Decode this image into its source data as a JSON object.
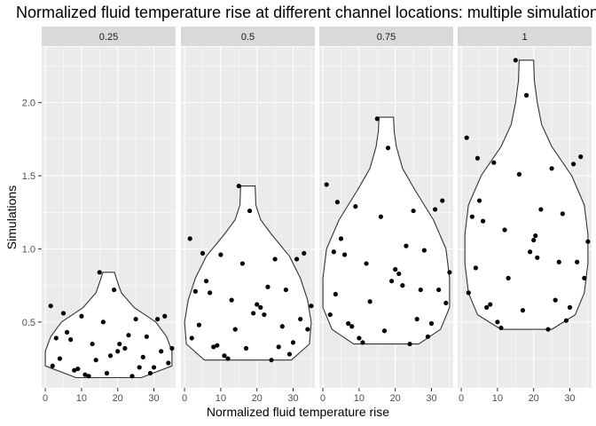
{
  "chart_data": {
    "type": "scatter",
    "title": "Normalized fluid temperature rise at different channel locations: multiple simulations",
    "xlabel": "Normalized fluid temperature rise",
    "ylabel": "Simulations",
    "xlim": [
      -1,
      36
    ],
    "ylim": [
      0.05,
      2.38
    ],
    "xticks": [
      "0",
      "10",
      "20",
      "30"
    ],
    "yticks": [
      "0.5",
      "1.0",
      "1.5",
      "2.0"
    ],
    "grid": true,
    "overlay": "violin",
    "colors": {
      "panel_bg": "#ebebeb",
      "strip_bg": "#d9d9d9",
      "grid": "#ffffff",
      "point": "#000000",
      "violin_fill": "#ffffff",
      "violin_line": "#333333"
    },
    "panels": [
      {
        "label": "0.25",
        "points": [
          [
            1.5,
            0.61
          ],
          [
            2,
            0.2
          ],
          [
            3,
            0.39
          ],
          [
            4,
            0.25
          ],
          [
            5,
            0.56
          ],
          [
            6,
            0.43
          ],
          [
            7,
            0.38
          ],
          [
            8,
            0.17
          ],
          [
            9,
            0.18
          ],
          [
            10,
            0.54
          ],
          [
            11,
            0.14
          ],
          [
            12,
            0.13
          ],
          [
            13,
            0.35
          ],
          [
            14,
            0.24
          ],
          [
            15,
            0.84
          ],
          [
            16,
            0.5
          ],
          [
            17,
            0.15
          ],
          [
            18,
            0.27
          ],
          [
            19,
            0.72
          ],
          [
            20,
            0.3
          ],
          [
            20.5,
            0.35
          ],
          [
            22,
            0.32
          ],
          [
            23,
            0.41
          ],
          [
            24,
            0.13
          ],
          [
            25,
            0.52
          ],
          [
            26,
            0.19
          ],
          [
            27,
            0.26
          ],
          [
            28,
            0.4
          ],
          [
            29,
            0.15
          ],
          [
            30,
            0.19
          ],
          [
            31,
            0.52
          ],
          [
            32,
            0.3
          ],
          [
            33,
            0.54
          ],
          [
            34,
            0.22
          ],
          [
            35,
            0.32
          ]
        ],
        "violin": {
          "center": 17.5,
          "y": [
            0.12,
            0.2,
            0.3,
            0.4,
            0.5,
            0.6,
            0.7,
            0.77,
            0.84
          ],
          "hw": [
            9,
            17.5,
            17.5,
            16,
            13,
            7,
            3.5,
            2.5,
            1.6
          ]
        }
      },
      {
        "label": "0.5",
        "points": [
          [
            1.5,
            1.07
          ],
          [
            2,
            0.39
          ],
          [
            3,
            0.71
          ],
          [
            4,
            0.48
          ],
          [
            5,
            0.97
          ],
          [
            6,
            0.78
          ],
          [
            7,
            0.7
          ],
          [
            8,
            0.33
          ],
          [
            9,
            0.34
          ],
          [
            10,
            0.96
          ],
          [
            11,
            0.27
          ],
          [
            12,
            0.25
          ],
          [
            13,
            0.65
          ],
          [
            14,
            0.45
          ],
          [
            15,
            1.43
          ],
          [
            16,
            0.9
          ],
          [
            17,
            0.32
          ],
          [
            18,
            1.26
          ],
          [
            19,
            0.56
          ],
          [
            20,
            0.62
          ],
          [
            21,
            0.6
          ],
          [
            22,
            0.55
          ],
          [
            23,
            0.74
          ],
          [
            24,
            0.24
          ],
          [
            25,
            0.93
          ],
          [
            26,
            0.33
          ],
          [
            27,
            0.47
          ],
          [
            28,
            0.72
          ],
          [
            29,
            0.28
          ],
          [
            30,
            0.36
          ],
          [
            31,
            0.93
          ],
          [
            32,
            0.52
          ],
          [
            33,
            0.97
          ],
          [
            34,
            0.45
          ],
          [
            35,
            0.61
          ]
        ],
        "violin": {
          "center": 17.5,
          "y": [
            0.24,
            0.35,
            0.5,
            0.65,
            0.8,
            0.95,
            1.1,
            1.2,
            1.3,
            1.43
          ],
          "hw": [
            12,
            17,
            17.5,
            16.5,
            14.5,
            11.5,
            6.5,
            3.5,
            2.2,
            2
          ]
        }
      },
      {
        "label": "0.75",
        "points": [
          [
            1,
            1.44
          ],
          [
            2,
            0.55
          ],
          [
            3,
            0.98
          ],
          [
            3.5,
            0.69
          ],
          [
            4,
            1.32
          ],
          [
            5,
            1.07
          ],
          [
            6,
            0.96
          ],
          [
            7,
            0.49
          ],
          [
            8,
            0.47
          ],
          [
            9,
            1.29
          ],
          [
            10,
            0.39
          ],
          [
            11,
            0.36
          ],
          [
            12,
            0.9
          ],
          [
            13,
            0.64
          ],
          [
            15,
            1.89
          ],
          [
            16,
            1.22
          ],
          [
            17,
            0.44
          ],
          [
            18,
            1.69
          ],
          [
            19,
            0.78
          ],
          [
            20,
            0.86
          ],
          [
            21,
            0.83
          ],
          [
            22,
            0.75
          ],
          [
            23,
            1.02
          ],
          [
            24,
            0.35
          ],
          [
            25,
            1.26
          ],
          [
            26,
            0.52
          ],
          [
            27,
            0.72
          ],
          [
            28,
            0.99
          ],
          [
            29,
            0.4
          ],
          [
            30,
            0.49
          ],
          [
            31,
            1.27
          ],
          [
            32,
            0.72
          ],
          [
            33,
            1.33
          ],
          [
            34,
            0.63
          ],
          [
            35,
            0.84
          ]
        ],
        "violin": {
          "center": 17.5,
          "y": [
            0.35,
            0.45,
            0.6,
            0.8,
            1.0,
            1.2,
            1.4,
            1.55,
            1.7,
            1.8,
            1.9
          ],
          "hw": [
            9,
            15,
            17.5,
            17.5,
            16.5,
            13,
            8,
            4.5,
            2.8,
            2.2,
            2
          ]
        }
      },
      {
        "label": "1",
        "points": [
          [
            1.5,
            1.76
          ],
          [
            2,
            0.7
          ],
          [
            3,
            1.22
          ],
          [
            4,
            0.87
          ],
          [
            4.5,
            1.62
          ],
          [
            5,
            1.33
          ],
          [
            6,
            1.19
          ],
          [
            7,
            0.6
          ],
          [
            8,
            0.62
          ],
          [
            9,
            1.59
          ],
          [
            10,
            0.5
          ],
          [
            11,
            0.46
          ],
          [
            12,
            1.13
          ],
          [
            13,
            0.8
          ],
          [
            15,
            2.29
          ],
          [
            16,
            1.51
          ],
          [
            17,
            0.58
          ],
          [
            18,
            2.05
          ],
          [
            19,
            0.98
          ],
          [
            20,
            1.06
          ],
          [
            20.5,
            1.09
          ],
          [
            21,
            0.94
          ],
          [
            22,
            1.27
          ],
          [
            24,
            0.45
          ],
          [
            25,
            1.55
          ],
          [
            26,
            0.65
          ],
          [
            27,
            0.91
          ],
          [
            28,
            1.24
          ],
          [
            29,
            0.51
          ],
          [
            30,
            0.6
          ],
          [
            31,
            1.58
          ],
          [
            32,
            0.91
          ],
          [
            33,
            1.63
          ],
          [
            34,
            0.8
          ],
          [
            35,
            1.05
          ]
        ],
        "violin": {
          "center": 18,
          "y": [
            0.45,
            0.55,
            0.7,
            0.9,
            1.1,
            1.3,
            1.5,
            1.7,
            1.85,
            2.0,
            2.15,
            2.29
          ],
          "hw": [
            7,
            13.5,
            16,
            17,
            17,
            16,
            12.5,
            7,
            4.2,
            3,
            2.2,
            2
          ]
        }
      }
    ]
  }
}
